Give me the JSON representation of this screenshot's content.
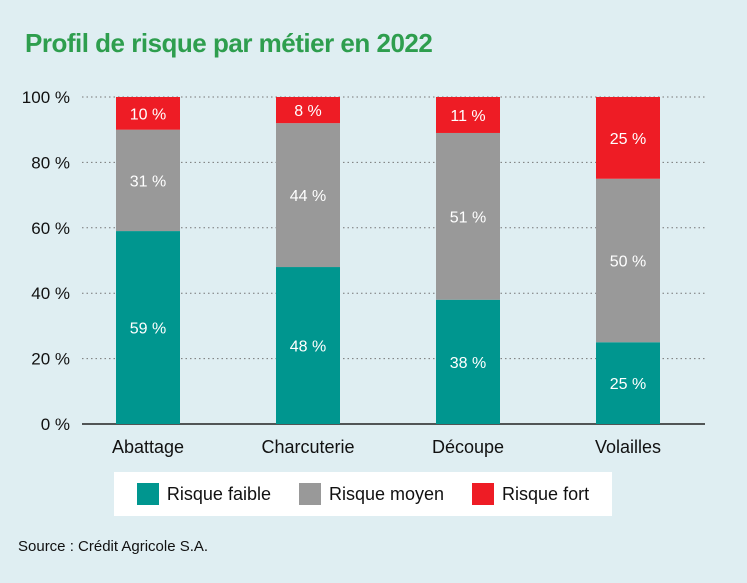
{
  "chart_data": {
    "type": "bar",
    "stacked": true,
    "title": "Profil de risque par métier en 2022",
    "categories": [
      "Abattage",
      "Charcuterie",
      "Découpe",
      "Volailles"
    ],
    "series": [
      {
        "name": "Risque faible",
        "color": "#00968f",
        "values": [
          59,
          48,
          38,
          25
        ],
        "labels": [
          "59 %",
          "48 %",
          "38 %",
          "25 %"
        ]
      },
      {
        "name": "Risque moyen",
        "color": "#999999",
        "values": [
          31,
          44,
          51,
          50
        ],
        "labels": [
          "31 %",
          "44 %",
          "51 %",
          "50 %"
        ]
      },
      {
        "name": "Risque fort",
        "color": "#ee1c25",
        "values": [
          10,
          8,
          11,
          25
        ],
        "labels": [
          "10 %",
          "8 %",
          "11 %",
          "25 %"
        ]
      }
    ],
    "yticks": [
      0,
      20,
      40,
      60,
      80,
      100
    ],
    "ytick_labels": [
      "0 %",
      "20 %",
      "40 %",
      "60 %",
      "80 %",
      "100 %"
    ],
    "ylim": [
      0,
      100
    ],
    "xlabel": "",
    "ylabel": "",
    "grid": "dotted horizontal",
    "legend_position": "bottom"
  },
  "source": "Source : Crédit Agricole S.A."
}
